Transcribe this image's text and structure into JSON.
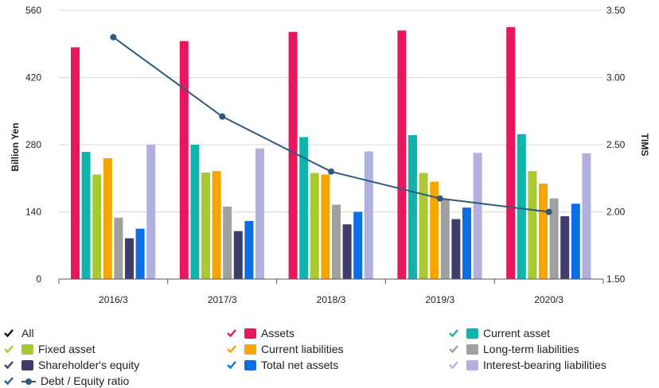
{
  "chart_data": {
    "type": "bar",
    "categories": [
      "2016/3",
      "2017/3",
      "2018/3",
      "2019/3",
      "2020/3"
    ],
    "ylabel": "Billion Yen",
    "y2label": "TIMS",
    "ylim": [
      0,
      560
    ],
    "y2lim": [
      1.5,
      3.5
    ],
    "yticks": [
      "0",
      "140",
      "280",
      "420",
      "560"
    ],
    "y2ticks": [
      "1.50",
      "2.00",
      "2.50",
      "3.00",
      "3.50"
    ],
    "grid": true,
    "legend_position": "bottom",
    "series": [
      {
        "name": "Assets",
        "color": "#e8175d",
        "values": [
          483,
          496,
          515,
          518,
          525
        ]
      },
      {
        "name": "Current asset",
        "color": "#12b3ad",
        "values": [
          265,
          280,
          296,
          300,
          302
        ]
      },
      {
        "name": "Fixed asset",
        "color": "#a8c930",
        "values": [
          218,
          222,
          221,
          221,
          225
        ]
      },
      {
        "name": "Current liabilities",
        "color": "#f7a600",
        "values": [
          252,
          225,
          218,
          203,
          199
        ]
      },
      {
        "name": "Long-term liabilities",
        "color": "#a0a0a0",
        "values": [
          128,
          151,
          155,
          167,
          168
        ]
      },
      {
        "name": "Shareholder's equity",
        "color": "#3d3e6b",
        "values": [
          85,
          100,
          114,
          125,
          131
        ]
      },
      {
        "name": "Total net assets",
        "color": "#0a6ee6",
        "values": [
          105,
          121,
          140,
          149,
          157
        ]
      },
      {
        "name": "Interest-bearing liabilities",
        "color": "#b2b0df",
        "values": [
          280,
          272,
          266,
          263,
          262
        ]
      }
    ],
    "line": {
      "name": "Debt / Equity ratio",
      "color": "#2f5a80",
      "values": [
        3.3,
        2.71,
        2.3,
        2.1,
        2.0
      ]
    }
  },
  "legend": {
    "all_label": "All",
    "check_colors": {
      "all": "#111111",
      "Assets": "#e8175d",
      "Current asset": "#12b3ad",
      "Fixed asset": "#a8c930",
      "Current liabilities": "#f7a600",
      "Long-term liabilities": "#a0a0a0",
      "Shareholder's equity": "#3d3e6b",
      "Total net assets": "#0a6ee6",
      "Interest-bearing liabilities": "#b2b0df",
      "Debt / Equity ratio": "#2f5a80"
    },
    "icon": "checkmark-icon"
  }
}
